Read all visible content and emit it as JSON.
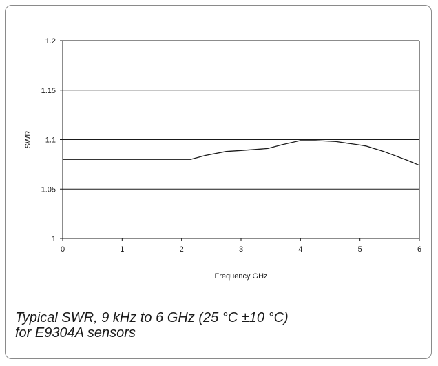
{
  "caption": {
    "line1": "Typical SWR, 9 kHz to 6 GHz (25 °C  ±10 °C)",
    "line2": "for E9304A sensors"
  },
  "chart_data": {
    "type": "line",
    "title": "",
    "xlabel": "Frequency GHz",
    "ylabel": "SWR",
    "xlim": [
      0,
      6
    ],
    "ylim": [
      1,
      1.2
    ],
    "x_ticks": [
      "0",
      "1",
      "2",
      "3",
      "4",
      "5",
      "6"
    ],
    "y_ticks": [
      "1.2",
      "1.15",
      "1.1",
      "1.05",
      "1"
    ],
    "grid": "horizontal",
    "legend": "none",
    "colors": {
      "line": "#1a1a1a",
      "grid": "#1a1a1a",
      "frame": "#8a8a8a"
    },
    "series": [
      {
        "x": [
          0,
          0.5,
          1.0,
          1.5,
          2.0,
          2.15,
          2.4,
          2.75,
          3.0,
          3.45,
          3.7,
          4.0,
          4.25,
          4.6,
          5.0,
          5.1,
          5.4,
          5.8,
          6.0
        ],
        "values": [
          1.08,
          1.08,
          1.08,
          1.08,
          1.08,
          1.08,
          1.084,
          1.088,
          1.089,
          1.091,
          1.095,
          1.099,
          1.099,
          1.098,
          1.0945,
          1.0935,
          1.088,
          1.079,
          1.074
        ]
      }
    ]
  }
}
